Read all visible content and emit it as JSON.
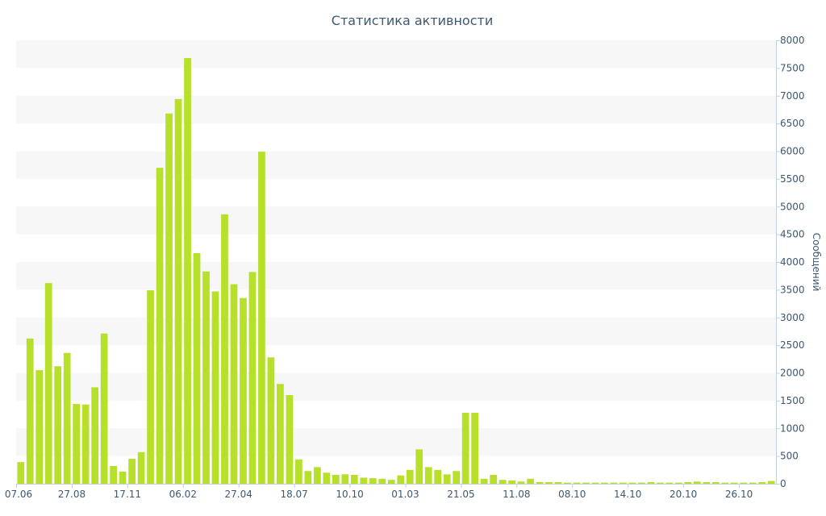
{
  "chart_data": {
    "type": "bar",
    "title": "Статистика активности",
    "xlabel": "",
    "ylabel": "Сообщений",
    "ylim": [
      0,
      8000
    ],
    "y_ticks": [
      0,
      500,
      1000,
      1500,
      2000,
      2500,
      3000,
      3500,
      4000,
      4500,
      5000,
      5500,
      6000,
      6500,
      7000,
      7500,
      8000
    ],
    "y_axis_side": "right",
    "grid": "alternating horizontal bands",
    "legend": "none",
    "bar_color": "#b6e02a",
    "text_color": "#3e576f",
    "x_tick_labels": [
      "07.06",
      "27.08",
      "17.11",
      "06.02",
      "27.04",
      "18.07",
      "10.10",
      "01.03",
      "21.05",
      "11.08",
      "08.10",
      "14.10",
      "20.10",
      "26.10"
    ],
    "values": [
      390,
      2620,
      2050,
      3620,
      2120,
      2360,
      1440,
      1430,
      1740,
      2710,
      320,
      220,
      450,
      570,
      3490,
      5700,
      6680,
      6940,
      7680,
      4160,
      3830,
      3470,
      4860,
      3600,
      3350,
      3820,
      5990,
      2280,
      1800,
      1600,
      440,
      230,
      300,
      200,
      160,
      170,
      160,
      110,
      100,
      90,
      70,
      150,
      250,
      620,
      300,
      250,
      170,
      230,
      1280,
      1280,
      90,
      160,
      70,
      60,
      40,
      90,
      30,
      30,
      30,
      20,
      20,
      20,
      20,
      20,
      20,
      20,
      20,
      20,
      30,
      20,
      20,
      20,
      30,
      40,
      30,
      30,
      20,
      20,
      20,
      20,
      30,
      50
    ]
  }
}
